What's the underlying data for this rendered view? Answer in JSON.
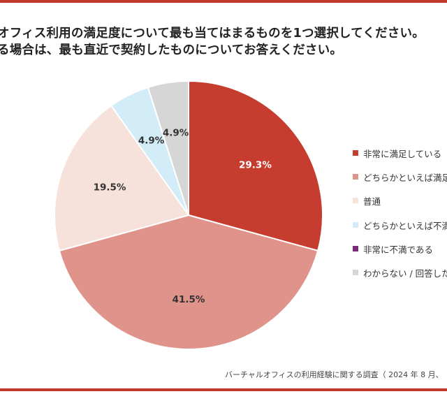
{
  "title": {
    "line1": "オフィス利用の満足度について最も当てはまるものを1つ選択してください。",
    "line2": "る場合は、最も直近で契約したものについてお答えください。"
  },
  "chart_data": {
    "type": "pie",
    "start": "12 o'clock",
    "direction": "clockwise",
    "slices": [
      {
        "label": "非常に満足している",
        "value": 29.3,
        "display": "29.3%",
        "color": "#c63d2f",
        "text_color": "#ffffff"
      },
      {
        "label": "どちらかといえば満足",
        "value": 41.5,
        "display": "41.5%",
        "color": "#df938a",
        "text_color": "#333333"
      },
      {
        "label": "普通",
        "value": 19.5,
        "display": "19.5%",
        "color": "#f6e2da",
        "text_color": "#333333"
      },
      {
        "label": "どちらかといえば不満",
        "value": 4.9,
        "display": "4.9%",
        "color": "#d2ecf8",
        "text_color": "#333333"
      },
      {
        "label": "非常に不満である",
        "value": 0.0,
        "display": "",
        "color": "#7d2a7d",
        "text_color": "#333333"
      },
      {
        "label": "わからない / 回答した",
        "value": 4.9,
        "display": "4.9%",
        "color": "#d6d6d6",
        "text_color": "#333333"
      }
    ]
  },
  "source": "バーチャルオフィスの利用経験に関する調査（ 2024 年 8 月、"
}
